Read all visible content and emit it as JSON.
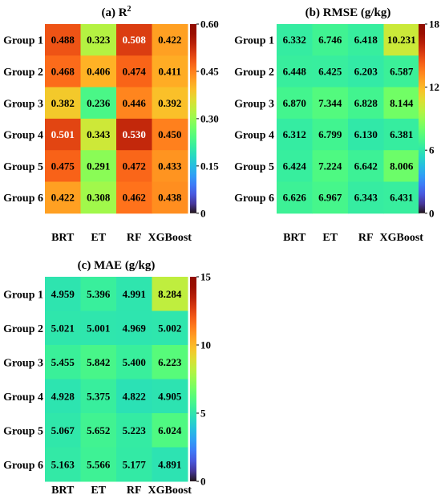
{
  "chart_data": [
    {
      "type": "heatmap",
      "title": "(a) R",
      "title_superscript": "2",
      "rows": [
        "Group 1",
        "Group 2",
        "Group 3",
        "Group 4",
        "Group 5",
        "Group 6"
      ],
      "columns": [
        "BRT",
        "ET",
        "RF",
        "XGBoost"
      ],
      "values": [
        [
          0.488,
          0.323,
          0.508,
          0.422
        ],
        [
          0.468,
          0.406,
          0.474,
          0.411
        ],
        [
          0.382,
          0.236,
          0.446,
          0.392
        ],
        [
          0.501,
          0.343,
          0.53,
          0.45
        ],
        [
          0.475,
          0.291,
          0.472,
          0.433
        ],
        [
          0.422,
          0.308,
          0.462,
          0.438
        ]
      ],
      "value_labels": [
        [
          "0.488",
          "0.323",
          "0.508",
          "0.422"
        ],
        [
          "0.468",
          "0.406",
          "0.474",
          "0.411"
        ],
        [
          "0.382",
          "0.236",
          "0.446",
          "0.392"
        ],
        [
          "0.501",
          "0.343",
          "0.530",
          "0.450"
        ],
        [
          "0.475",
          "0.291",
          "0.472",
          "0.433"
        ],
        [
          "0.422",
          "0.308",
          "0.462",
          "0.438"
        ]
      ],
      "colorbar_range": [
        0,
        0.6
      ],
      "colorbar_ticks": [
        "0",
        "0.15",
        "0.30",
        "0.45",
        "0.60"
      ],
      "colormap": "turbo"
    },
    {
      "type": "heatmap",
      "title": "(b) RMSE (g/kg)",
      "rows": [
        "Group 1",
        "Group 2",
        "Group 3",
        "Group 4",
        "Group 5",
        "Group 6"
      ],
      "columns": [
        "BRT",
        "ET",
        "RF",
        "XGBoost"
      ],
      "values": [
        [
          6.332,
          6.746,
          6.418,
          10.231
        ],
        [
          6.448,
          6.425,
          6.203,
          6.587
        ],
        [
          6.87,
          7.344,
          6.828,
          8.144
        ],
        [
          6.312,
          6.799,
          6.13,
          6.381
        ],
        [
          6.424,
          7.224,
          6.642,
          8.006
        ],
        [
          6.626,
          6.967,
          6.343,
          6.431
        ]
      ],
      "value_labels": [
        [
          "6.332",
          "6.746",
          "6.418",
          "10.231"
        ],
        [
          "6.448",
          "6.425",
          "6.203",
          "6.587"
        ],
        [
          "6.870",
          "7.344",
          "6.828",
          "8.144"
        ],
        [
          "6.312",
          "6.799",
          "6.130",
          "6.381"
        ],
        [
          "6.424",
          "7.224",
          "6.642",
          "8.006"
        ],
        [
          "6.626",
          "6.967",
          "6.343",
          "6.431"
        ]
      ],
      "colorbar_range": [
        0,
        18
      ],
      "colorbar_ticks": [
        "0",
        "6",
        "12",
        "18"
      ],
      "colormap": "turbo"
    },
    {
      "type": "heatmap",
      "title": "(c) MAE (g/kg)",
      "rows": [
        "Group 1",
        "Group 2",
        "Group 3",
        "Group 4",
        "Group 5",
        "Group 6"
      ],
      "columns": [
        "BRT",
        "ET",
        "RF",
        "XGBoost"
      ],
      "values": [
        [
          4.959,
          5.396,
          4.991,
          8.284
        ],
        [
          5.021,
          5.001,
          4.969,
          5.002
        ],
        [
          5.455,
          5.842,
          5.4,
          6.223
        ],
        [
          4.928,
          5.375,
          4.822,
          4.905
        ],
        [
          5.067,
          5.652,
          5.223,
          6.024
        ],
        [
          5.163,
          5.566,
          5.177,
          4.891
        ]
      ],
      "value_labels": [
        [
          "4.959",
          "5.396",
          "4.991",
          "8.284"
        ],
        [
          "5.021",
          "5.001",
          "4.969",
          "5.002"
        ],
        [
          "5.455",
          "5.842",
          "5.400",
          "6.223"
        ],
        [
          "4.928",
          "5.375",
          "4.822",
          "4.905"
        ],
        [
          "5.067",
          "5.652",
          "5.223",
          "6.024"
        ],
        [
          "5.163",
          "5.566",
          "5.177",
          "4.891"
        ]
      ],
      "colorbar_range": [
        0,
        15
      ],
      "colorbar_ticks": [
        "0",
        "5",
        "10",
        "15"
      ],
      "colormap": "turbo"
    }
  ]
}
